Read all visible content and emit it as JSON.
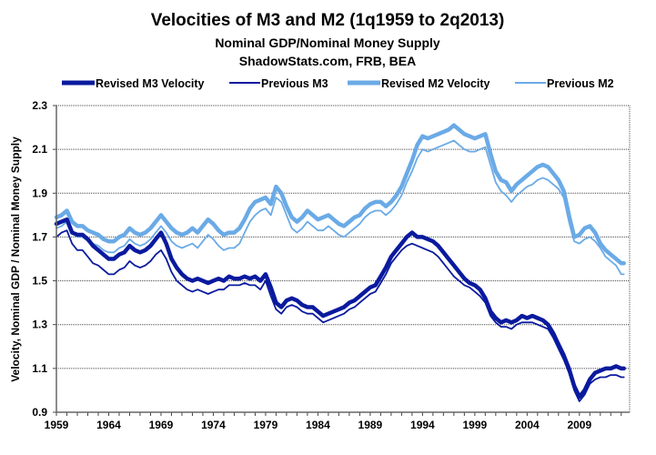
{
  "chart_data": {
    "type": "line",
    "title": "Velocities of M3 and M2 (1q1959 to 2q2013)",
    "subtitles": [
      "Nominal GDP/Nominal Money Supply",
      "ShadowStats.com, FRB, BEA"
    ],
    "xlabel": "",
    "ylabel": "Velocity, Nominal GDP / Nominal Money Supply",
    "ylim": [
      0.9,
      2.3
    ],
    "xlim": [
      1959,
      2013.8
    ],
    "yticks": [
      "0.9",
      "1.1",
      "1.3",
      "1.5",
      "1.7",
      "1.9",
      "2.1",
      "2.3"
    ],
    "xticks": [
      "1959",
      "1964",
      "1969",
      "1974",
      "1979",
      "1984",
      "1989",
      "1994",
      "1999",
      "2004",
      "2009"
    ],
    "grid": "horizontal",
    "legend_position": "top",
    "x": [
      1959,
      1959.5,
      1960,
      1960.5,
      1961,
      1961.5,
      1962,
      1962.5,
      1963,
      1963.5,
      1964,
      1964.5,
      1965,
      1965.5,
      1966,
      1966.5,
      1967,
      1967.5,
      1968,
      1968.5,
      1969,
      1969.5,
      1970,
      1970.5,
      1971,
      1971.5,
      1972,
      1972.5,
      1973,
      1973.5,
      1974,
      1974.5,
      1975,
      1975.5,
      1976,
      1976.5,
      1977,
      1977.5,
      1978,
      1978.5,
      1979,
      1979.5,
      1980,
      1980.5,
      1981,
      1981.5,
      1982,
      1982.5,
      1983,
      1983.5,
      1984,
      1984.5,
      1985,
      1985.5,
      1986,
      1986.5,
      1987,
      1987.5,
      1988,
      1988.5,
      1989,
      1989.5,
      1990,
      1990.5,
      1991,
      1991.5,
      1992,
      1992.5,
      1993,
      1993.5,
      1994,
      1994.5,
      1995,
      1995.5,
      1996,
      1996.5,
      1997,
      1997.5,
      1998,
      1998.5,
      1999,
      1999.5,
      2000,
      2000.5,
      2001,
      2001.5,
      2002,
      2002.5,
      2003,
      2003.5,
      2004,
      2004.5,
      2005,
      2005.5,
      2006,
      2006.5,
      2007,
      2007.5,
      2008,
      2008.5,
      2009,
      2009.5,
      2010,
      2010.5,
      2011,
      2011.5,
      2012,
      2012.5,
      2013,
      2013.25
    ],
    "series": [
      {
        "name": "Revised M3 Velocity",
        "color": "#0a1a9e",
        "values": [
          1.76,
          1.77,
          1.78,
          1.72,
          1.71,
          1.71,
          1.69,
          1.66,
          1.64,
          1.62,
          1.6,
          1.6,
          1.62,
          1.63,
          1.66,
          1.64,
          1.63,
          1.64,
          1.66,
          1.69,
          1.72,
          1.67,
          1.6,
          1.56,
          1.53,
          1.51,
          1.5,
          1.51,
          1.5,
          1.49,
          1.5,
          1.51,
          1.5,
          1.52,
          1.51,
          1.51,
          1.52,
          1.51,
          1.52,
          1.5,
          1.53,
          1.47,
          1.4,
          1.38,
          1.41,
          1.42,
          1.41,
          1.39,
          1.38,
          1.38,
          1.36,
          1.34,
          1.35,
          1.36,
          1.37,
          1.38,
          1.4,
          1.41,
          1.43,
          1.45,
          1.47,
          1.48,
          1.52,
          1.56,
          1.61,
          1.64,
          1.67,
          1.7,
          1.72,
          1.7,
          1.7,
          1.69,
          1.68,
          1.66,
          1.63,
          1.6,
          1.57,
          1.54,
          1.51,
          1.49,
          1.48,
          1.46,
          1.42,
          1.36,
          1.33,
          1.31,
          1.32,
          1.31,
          1.32,
          1.34,
          1.33,
          1.34,
          1.33,
          1.32,
          1.3,
          1.26,
          1.21,
          1.16,
          1.1,
          1.02,
          0.97,
          1.0,
          1.05,
          1.08,
          1.09,
          1.1,
          1.1,
          1.11,
          1.1,
          1.1
        ]
      },
      {
        "name": "Previous M3",
        "color": "#0a1a9e",
        "values": [
          1.7,
          1.72,
          1.73,
          1.67,
          1.64,
          1.64,
          1.61,
          1.58,
          1.57,
          1.55,
          1.53,
          1.53,
          1.55,
          1.56,
          1.59,
          1.57,
          1.56,
          1.57,
          1.59,
          1.62,
          1.64,
          1.6,
          1.54,
          1.5,
          1.48,
          1.46,
          1.45,
          1.46,
          1.45,
          1.44,
          1.45,
          1.46,
          1.46,
          1.48,
          1.48,
          1.48,
          1.49,
          1.48,
          1.48,
          1.46,
          1.5,
          1.43,
          1.37,
          1.35,
          1.38,
          1.39,
          1.38,
          1.36,
          1.35,
          1.35,
          1.33,
          1.31,
          1.32,
          1.33,
          1.34,
          1.35,
          1.37,
          1.38,
          1.4,
          1.42,
          1.44,
          1.45,
          1.49,
          1.53,
          1.58,
          1.61,
          1.64,
          1.66,
          1.67,
          1.66,
          1.65,
          1.64,
          1.63,
          1.61,
          1.58,
          1.55,
          1.52,
          1.5,
          1.48,
          1.47,
          1.45,
          1.43,
          1.4,
          1.34,
          1.31,
          1.29,
          1.29,
          1.28,
          1.3,
          1.31,
          1.31,
          1.31,
          1.3,
          1.29,
          1.28,
          1.24,
          1.19,
          1.14,
          1.08,
          1.0,
          0.95,
          0.98,
          1.03,
          1.05,
          1.06,
          1.06,
          1.07,
          1.07,
          1.06,
          1.06
        ]
      },
      {
        "name": "Revised M2 Velocity",
        "color": "#6aaae6",
        "values": [
          1.79,
          1.8,
          1.82,
          1.77,
          1.75,
          1.75,
          1.73,
          1.72,
          1.71,
          1.69,
          1.68,
          1.68,
          1.7,
          1.71,
          1.74,
          1.72,
          1.71,
          1.72,
          1.74,
          1.77,
          1.8,
          1.77,
          1.74,
          1.72,
          1.71,
          1.72,
          1.74,
          1.72,
          1.75,
          1.78,
          1.76,
          1.73,
          1.71,
          1.72,
          1.72,
          1.74,
          1.78,
          1.83,
          1.86,
          1.87,
          1.88,
          1.85,
          1.93,
          1.9,
          1.84,
          1.79,
          1.77,
          1.79,
          1.82,
          1.8,
          1.78,
          1.79,
          1.8,
          1.78,
          1.76,
          1.75,
          1.77,
          1.79,
          1.8,
          1.83,
          1.85,
          1.86,
          1.86,
          1.84,
          1.86,
          1.89,
          1.93,
          1.99,
          2.05,
          2.12,
          2.16,
          2.15,
          2.16,
          2.17,
          2.18,
          2.19,
          2.21,
          2.19,
          2.17,
          2.16,
          2.15,
          2.16,
          2.17,
          2.08,
          2.0,
          1.96,
          1.95,
          1.91,
          1.94,
          1.96,
          1.98,
          2.0,
          2.02,
          2.03,
          2.02,
          1.99,
          1.96,
          1.91,
          1.8,
          1.7,
          1.71,
          1.74,
          1.75,
          1.72,
          1.67,
          1.64,
          1.62,
          1.6,
          1.58,
          1.58
        ]
      },
      {
        "name": "Previous M2",
        "color": "#6aaae6",
        "values": [
          1.74,
          1.75,
          1.77,
          1.72,
          1.7,
          1.7,
          1.68,
          1.67,
          1.66,
          1.64,
          1.63,
          1.63,
          1.65,
          1.66,
          1.69,
          1.67,
          1.66,
          1.67,
          1.69,
          1.72,
          1.75,
          1.72,
          1.68,
          1.66,
          1.65,
          1.66,
          1.67,
          1.65,
          1.68,
          1.71,
          1.69,
          1.66,
          1.64,
          1.65,
          1.65,
          1.67,
          1.72,
          1.77,
          1.8,
          1.82,
          1.83,
          1.8,
          1.88,
          1.86,
          1.8,
          1.74,
          1.72,
          1.74,
          1.77,
          1.75,
          1.73,
          1.73,
          1.75,
          1.73,
          1.71,
          1.7,
          1.72,
          1.74,
          1.76,
          1.79,
          1.81,
          1.82,
          1.82,
          1.8,
          1.82,
          1.85,
          1.89,
          1.95,
          2.0,
          2.06,
          2.1,
          2.09,
          2.1,
          2.11,
          2.12,
          2.13,
          2.14,
          2.12,
          2.1,
          2.09,
          2.09,
          2.1,
          2.11,
          2.03,
          1.95,
          1.91,
          1.89,
          1.86,
          1.89,
          1.91,
          1.93,
          1.94,
          1.96,
          1.97,
          1.96,
          1.94,
          1.92,
          1.88,
          1.77,
          1.68,
          1.67,
          1.69,
          1.7,
          1.68,
          1.65,
          1.61,
          1.59,
          1.57,
          1.53,
          1.53
        ]
      }
    ]
  }
}
